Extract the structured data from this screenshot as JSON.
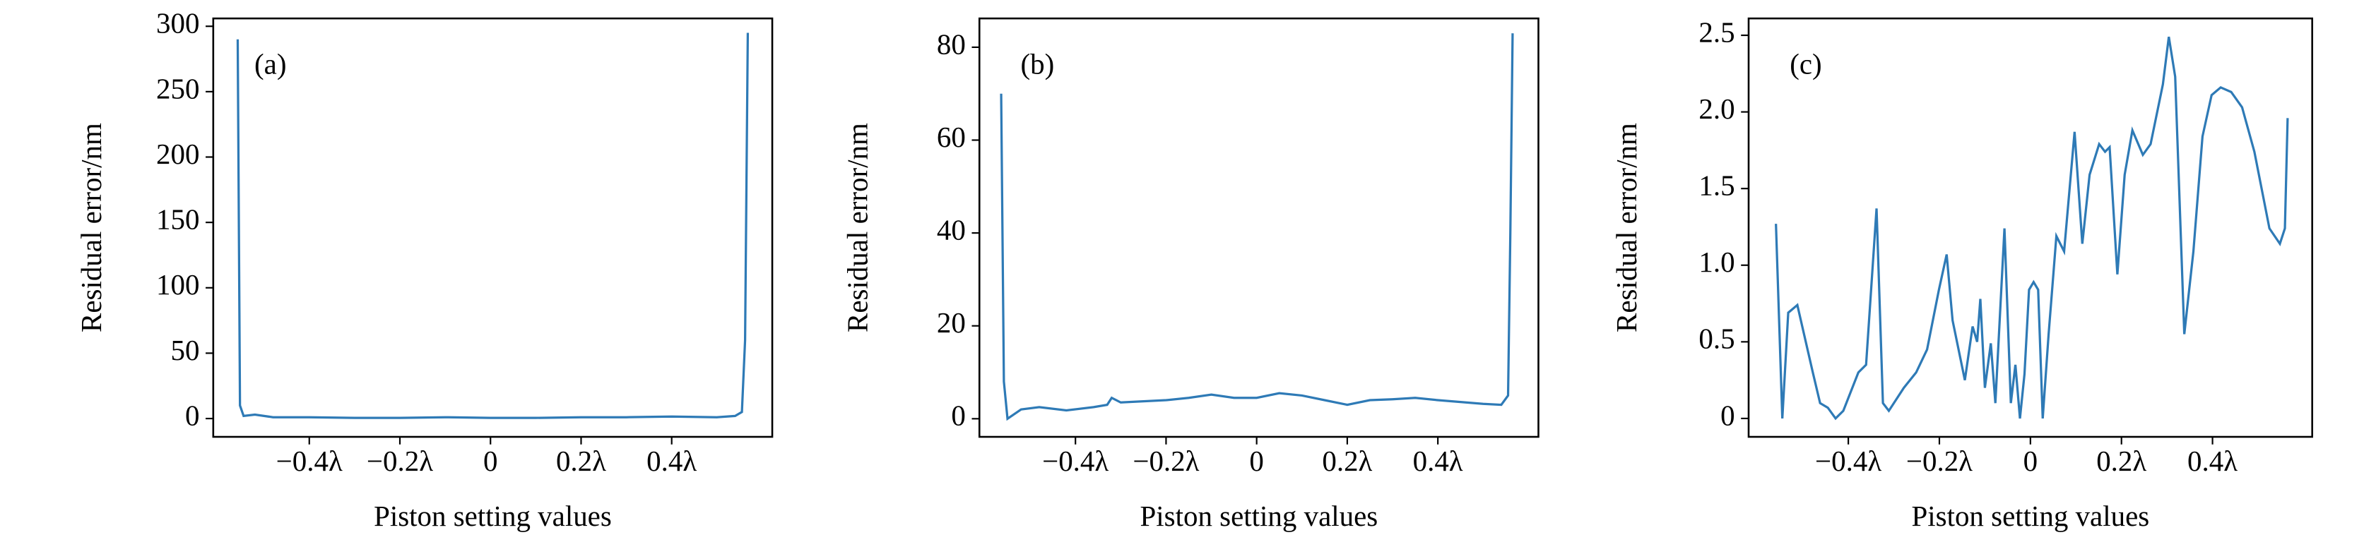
{
  "chart_data": [
    {
      "type": "line",
      "annotation": "(a)",
      "xlabel": "Piston setting values",
      "ylabel": "Residual error/nm",
      "color": "#2e7ab6",
      "xlim": [
        -0.612,
        0.622
      ],
      "ylim": [
        -14,
        306
      ],
      "xticks": [
        {
          "value": -0.4,
          "label": "−0.4λ"
        },
        {
          "value": -0.2,
          "label": "−0.2λ"
        },
        0,
        {
          "value": 0.2,
          "label": "0.2λ"
        },
        {
          "value": 0.4,
          "label": "0.4λ"
        }
      ],
      "yticks": [
        0,
        50,
        100,
        150,
        200,
        250,
        300
      ],
      "x": [
        -0.558,
        -0.553,
        -0.545,
        -0.52,
        -0.48,
        -0.4,
        -0.3,
        -0.2,
        -0.1,
        0,
        0.1,
        0.2,
        0.3,
        0.4,
        0.5,
        0.54,
        0.555,
        0.562,
        0.568
      ],
      "values": [
        290,
        10,
        2,
        3,
        1,
        1,
        0.5,
        0.5,
        1,
        0.5,
        0.5,
        1,
        1,
        1.5,
        1,
        2,
        5,
        60,
        295
      ]
    },
    {
      "type": "line",
      "annotation": "(b)",
      "xlabel": "Piston setting values",
      "ylabel": "Residual error/nm",
      "color": "#2e7ab6",
      "xlim": [
        -0.612,
        0.622
      ],
      "ylim": [
        -3.9,
        86.2
      ],
      "xticks": [
        {
          "value": -0.4,
          "label": "−0.4λ"
        },
        {
          "value": -0.2,
          "label": "−0.2λ"
        },
        0,
        {
          "value": 0.2,
          "label": "0.2λ"
        },
        {
          "value": 0.4,
          "label": "0.4λ"
        }
      ],
      "yticks": [
        0,
        20,
        40,
        60,
        80
      ],
      "x": [
        -0.564,
        -0.558,
        -0.55,
        -0.52,
        -0.48,
        -0.42,
        -0.36,
        -0.33,
        -0.32,
        -0.3,
        -0.2,
        -0.15,
        -0.1,
        -0.05,
        0,
        0.05,
        0.1,
        0.15,
        0.2,
        0.25,
        0.3,
        0.35,
        0.4,
        0.5,
        0.54,
        0.555,
        0.56,
        0.565
      ],
      "values": [
        70,
        8,
        0,
        2,
        2.5,
        1.8,
        2.5,
        3,
        4.5,
        3.5,
        4,
        4.5,
        5.2,
        4.5,
        4.5,
        5.5,
        5,
        4,
        3,
        4,
        4.2,
        4.5,
        4,
        3.2,
        3,
        5,
        40,
        83
      ]
    },
    {
      "type": "line",
      "annotation": "(c)",
      "xlabel": "Piston setting values",
      "ylabel": "Residual error/nm",
      "color": "#2e7ab6",
      "xlim": [
        -0.619,
        0.619
      ],
      "ylim": [
        -0.12,
        2.61
      ],
      "xticks": [
        {
          "value": -0.4,
          "label": "−0.4λ"
        },
        {
          "value": -0.2,
          "label": "−0.2λ"
        },
        0,
        {
          "value": 0.2,
          "label": "0.2λ"
        },
        {
          "value": 0.4,
          "label": "0.4λ"
        }
      ],
      "yticks": [
        0,
        0.5,
        {
          "value": 1,
          "label": "1.0"
        },
        1.5,
        {
          "value": 2,
          "label": "2.0"
        },
        2.5
      ],
      "x": [
        -0.559,
        -0.545,
        -0.532,
        -0.512,
        -0.478,
        -0.462,
        -0.445,
        -0.428,
        -0.411,
        -0.378,
        -0.361,
        -0.338,
        -0.324,
        -0.311,
        -0.278,
        -0.251,
        -0.227,
        -0.201,
        -0.184,
        -0.171,
        -0.144,
        -0.127,
        -0.117,
        -0.11,
        -0.1,
        -0.087,
        -0.077,
        -0.057,
        -0.043,
        -0.033,
        -0.023,
        -0.013,
        -0.003,
        0.007,
        0.017,
        0.027,
        0.04,
        0.057,
        0.074,
        0.097,
        0.114,
        0.13,
        0.151,
        0.164,
        0.174,
        0.191,
        0.207,
        0.224,
        0.247,
        0.264,
        0.291,
        0.304,
        0.318,
        0.338,
        0.358,
        0.378,
        0.398,
        0.418,
        0.441,
        0.465,
        0.492,
        0.525,
        0.548,
        0.559,
        0.565
      ],
      "values": [
        1.27,
        0,
        0.69,
        0.74,
        0.3,
        0.1,
        0.07,
        0,
        0.05,
        0.3,
        0.35,
        1.37,
        0.1,
        0.05,
        0.2,
        0.3,
        0.45,
        0.84,
        1.07,
        0.64,
        0.25,
        0.6,
        0.5,
        0.78,
        0.2,
        0.49,
        0.1,
        1.24,
        0.1,
        0.35,
        0,
        0.29,
        0.84,
        0.89,
        0.84,
        0,
        0.55,
        1.19,
        1.09,
        1.87,
        1.14,
        1.59,
        1.79,
        1.74,
        1.77,
        0.94,
        1.59,
        1.88,
        1.72,
        1.79,
        2.18,
        2.49,
        2.23,
        0.55,
        1.09,
        1.84,
        2.11,
        2.16,
        2.13,
        2.03,
        1.74,
        1.24,
        1.14,
        1.24,
        1.96
      ]
    }
  ]
}
